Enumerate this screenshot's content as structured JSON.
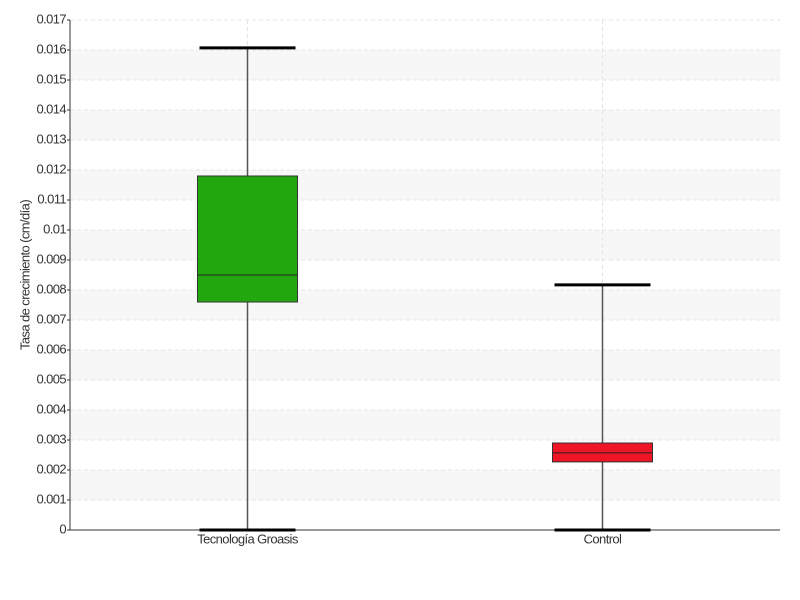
{
  "chart_data": {
    "type": "box",
    "y_label": "Tasa de crecimiento (cm/día)",
    "categories": [
      "Tecnología Groasis",
      "Control"
    ],
    "boxes": [
      {
        "min": 0,
        "q1": 0.0076,
        "median": 0.0085,
        "q3": 0.0118,
        "max": 0.01607,
        "color": "#22a80e"
      },
      {
        "min": 0,
        "q1": 0.00227,
        "median": 0.00257,
        "q3": 0.0029,
        "max": 0.00817,
        "color": "#ee1526"
      }
    ],
    "ylim": [
      0,
      0.017
    ],
    "yticks": [
      0,
      0.001,
      0.002,
      0.003,
      0.004,
      0.005,
      0.006,
      0.007,
      0.008,
      0.009,
      0.01,
      0.011,
      0.012,
      0.013,
      0.014,
      0.015,
      0.016,
      0.017
    ],
    "grid": true
  }
}
